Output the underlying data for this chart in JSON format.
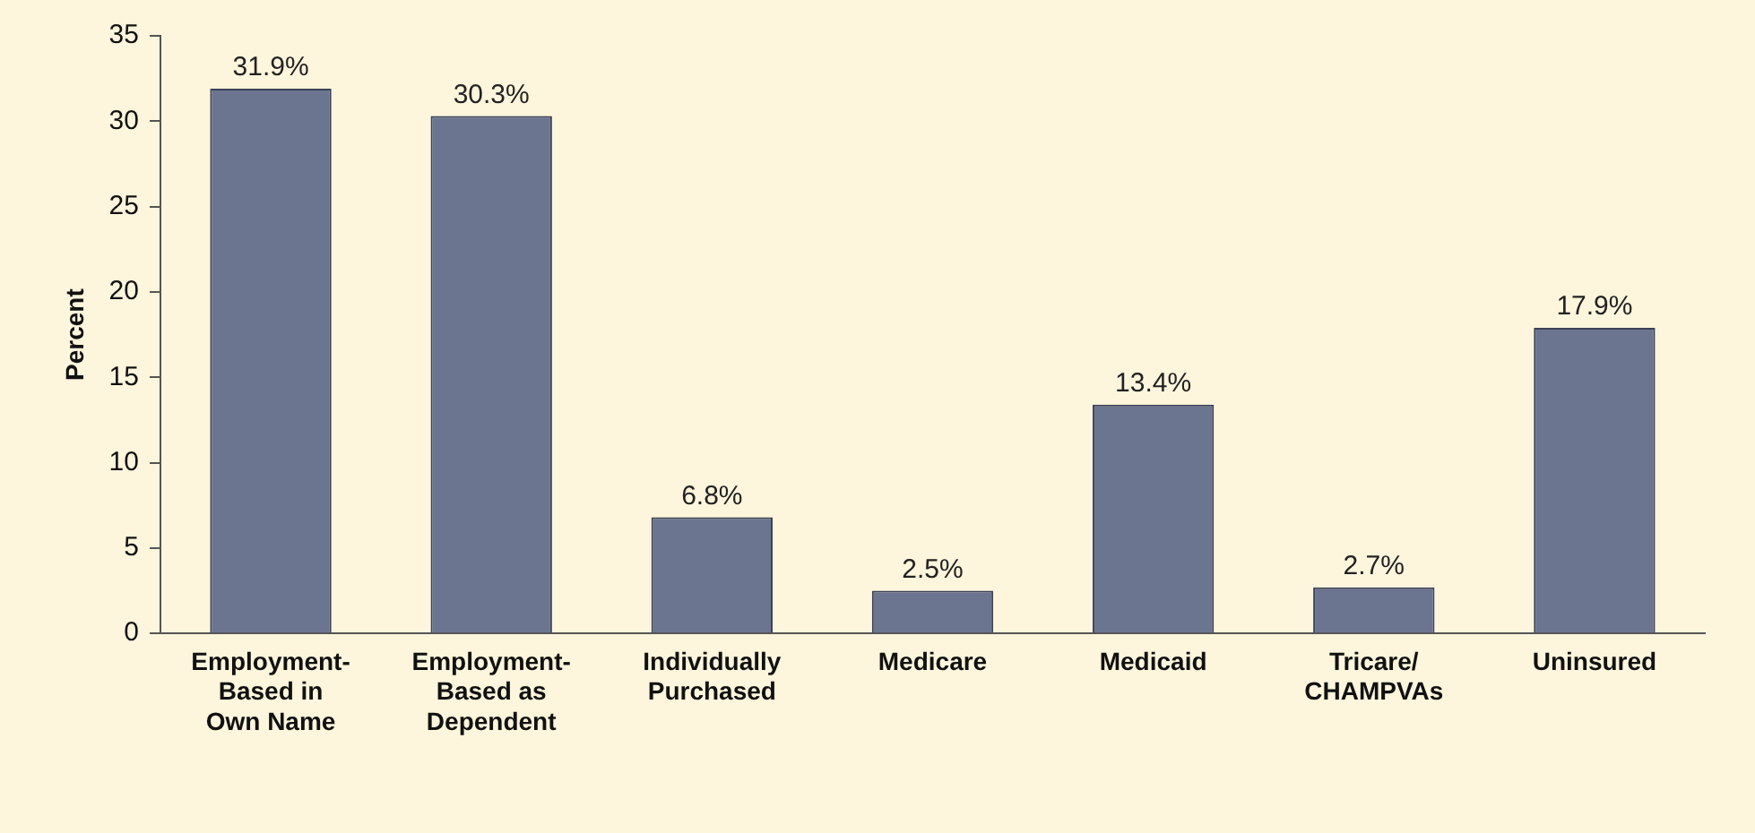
{
  "chart_data": {
    "type": "bar",
    "ylabel": "Percent",
    "categories": [
      "Employment-\nBased in\nOwn Name",
      "Employment-\nBased as\nDependent",
      "Individually\nPurchased",
      "Medicare",
      "Medicaid",
      "Tricare/\nCHAMPVAs",
      "Uninsured"
    ],
    "values": [
      31.9,
      30.3,
      6.8,
      2.5,
      13.4,
      2.7,
      17.9
    ],
    "value_labels": [
      "31.9%",
      "30.3%",
      "6.8%",
      "2.5%",
      "13.4%",
      "2.7%",
      "17.9%"
    ],
    "color": "#6b7590",
    "ylim": [
      0,
      35
    ],
    "yticks": [
      0,
      5,
      10,
      15,
      20,
      25,
      30,
      35
    ],
    "grid": false,
    "legend": false
  }
}
